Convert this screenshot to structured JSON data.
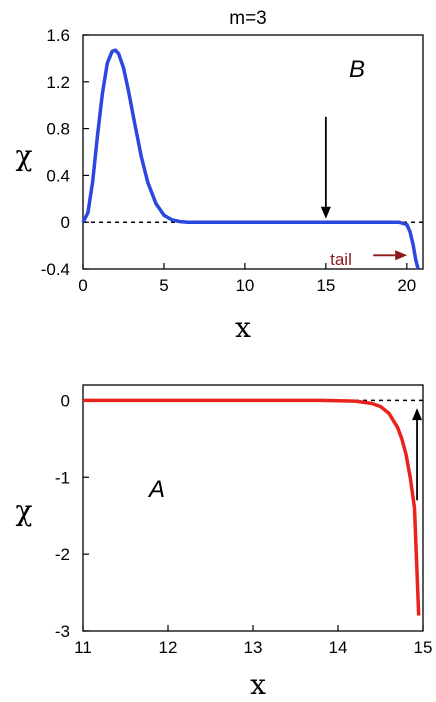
{
  "chart_data": [
    {
      "type": "line",
      "title": "m=3",
      "panel_label": "B",
      "xlabel": "x",
      "ylabel": "χ",
      "xlim": [
        0,
        21
      ],
      "ylim": [
        -0.4,
        1.6
      ],
      "xticks": [
        0,
        5,
        10,
        15,
        20
      ],
      "xtick_labels": [
        "0",
        "5",
        "10",
        "15",
        "20"
      ],
      "yticks": [
        -0.4,
        0,
        0.4,
        0.8,
        1.2,
        1.6
      ],
      "ytick_labels": [
        "-0.4",
        "0",
        "0.4",
        "0.8",
        "1.2",
        "1.6"
      ],
      "reference_line": 0,
      "color": "#2b47e0",
      "x": [
        0,
        0.3,
        0.6,
        0.9,
        1.2,
        1.5,
        1.8,
        2.0,
        2.2,
        2.5,
        2.8,
        3.2,
        3.6,
        4.0,
        4.5,
        5.0,
        5.5,
        6.0,
        6.5,
        8,
        10,
        12,
        14,
        16,
        18,
        19.5,
        20.0,
        20.2,
        20.4,
        20.55,
        20.7
      ],
      "y": [
        0,
        0.08,
        0.35,
        0.75,
        1.1,
        1.36,
        1.46,
        1.47,
        1.44,
        1.32,
        1.13,
        0.84,
        0.56,
        0.34,
        0.16,
        0.06,
        0.02,
        0.005,
        0,
        0,
        0,
        0,
        0,
        0,
        0,
        0,
        -0.02,
        -0.08,
        -0.2,
        -0.32,
        -0.4
      ],
      "annotations": [
        {
          "text": "tail",
          "arrow": "right",
          "color": "#8b1a1a",
          "x": 17.8,
          "y": -0.3
        },
        {
          "arrow": "down",
          "color": "#000000",
          "x": 15.0,
          "y_from": 0.9,
          "y_to": 0.03
        }
      ]
    },
    {
      "type": "line",
      "panel_label": "A",
      "xlabel": "x",
      "ylabel": "χ",
      "xlim": [
        11,
        15
      ],
      "ylim": [
        -3,
        0.2
      ],
      "xticks": [
        11,
        12,
        13,
        14,
        15
      ],
      "xtick_labels": [
        "11",
        "12",
        "13",
        "14",
        "15"
      ],
      "yticks": [
        -3,
        -2,
        -1,
        0
      ],
      "ytick_labels": [
        "-3",
        "-2",
        "-1",
        "0"
      ],
      "reference_line": 0,
      "color": "#e8221c",
      "x": [
        11,
        12,
        13,
        13.8,
        14.2,
        14.4,
        14.5,
        14.6,
        14.7,
        14.75,
        14.8,
        14.85,
        14.9,
        14.95
      ],
      "y": [
        0,
        0,
        0,
        0,
        -0.01,
        -0.04,
        -0.08,
        -0.17,
        -0.35,
        -0.5,
        -0.7,
        -1.0,
        -1.4,
        -2.8
      ],
      "annotations": [
        {
          "arrow": "up",
          "color": "#000000",
          "x": 14.93,
          "y_from": -1.3,
          "y_to": -0.1
        }
      ]
    }
  ]
}
